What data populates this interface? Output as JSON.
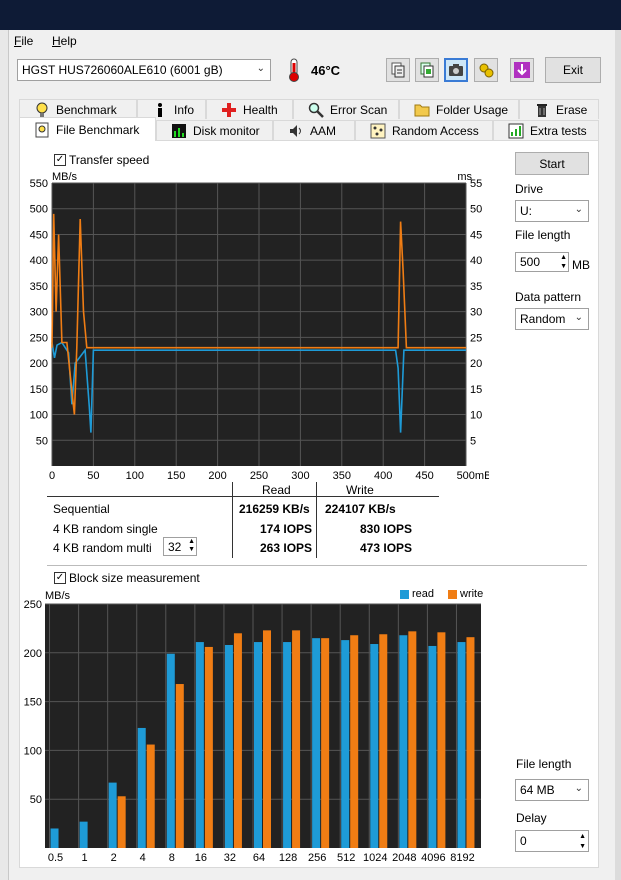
{
  "menu": {
    "file": "File",
    "help": "Help"
  },
  "toolbar": {
    "drive": "HGST HUS726060ALE610 (6001 gB)",
    "temperature": "46°C",
    "exit": "Exit",
    "icons": [
      "copy-icon",
      "copy-text-icon",
      "screenshot-icon",
      "options-icon",
      "save-icon"
    ]
  },
  "tabs_row1": [
    "Benchmark",
    "Info",
    "Health",
    "Error Scan",
    "Folder Usage",
    "Erase"
  ],
  "tabs_row2": [
    "File Benchmark",
    "Disk monitor",
    "AAM",
    "Random Access",
    "Extra tests"
  ],
  "active_tab": "File Benchmark",
  "right": {
    "start": "Start",
    "drive_label": "Drive",
    "drive_value": "U:",
    "file_length_label": "File length",
    "file_length_value": "500",
    "file_length_unit": "MB",
    "data_pattern_label": "Data pattern",
    "data_pattern_value": "Random",
    "file_length2_label": "File length",
    "file_length2_value": "64 MB",
    "delay_label": "Delay",
    "delay_value": "0"
  },
  "transfer": {
    "checkbox_label": "Transfer speed",
    "checked": true,
    "ylabel_left": "MB/s",
    "ylabel_right": "ms",
    "x_unit": "mB"
  },
  "results": {
    "header_read": "Read",
    "header_write": "Write",
    "rows": [
      {
        "label": "Sequential",
        "read": "216259 KB/s",
        "write": "224107 KB/s"
      },
      {
        "label": "4 KB random single",
        "read": "174 IOPS",
        "write": "830 IOPS"
      },
      {
        "label": "4 KB random multi",
        "read": "263 IOPS",
        "write": "473 IOPS"
      }
    ],
    "queue_depth": "32"
  },
  "block": {
    "checkbox_label": "Block size measurement",
    "checked": true,
    "ylabel": "MB/s",
    "legend_read": "read",
    "legend_write": "write"
  },
  "colors": {
    "read": "#1e9bd7",
    "write": "#f07d14",
    "plot_bg": "#222222",
    "grid": "#555555"
  },
  "chart_data": [
    {
      "type": "line",
      "title": "Transfer speed",
      "ylabel": "MB/s",
      "ylabel_right": "ms",
      "xlim": [
        0,
        500
      ],
      "ylim": [
        0,
        550
      ],
      "ylim_right": [
        0,
        55
      ],
      "x_ticks": [
        0,
        50,
        100,
        150,
        200,
        250,
        300,
        350,
        400,
        450,
        500
      ],
      "y_ticks": [
        50,
        100,
        150,
        200,
        250,
        300,
        350,
        400,
        450,
        500,
        550
      ],
      "y_ticks_right": [
        5,
        10,
        15,
        20,
        25,
        30,
        35,
        40,
        45,
        50,
        55
      ],
      "grid": true,
      "series": [
        {
          "name": "read",
          "x": [
            0,
            3,
            6,
            12,
            20,
            24,
            28,
            33,
            40,
            45,
            47,
            50,
            55,
            100,
            200,
            300,
            400,
            415,
            418,
            421,
            425,
            430,
            460,
            500
          ],
          "y": [
            240,
            210,
            235,
            240,
            220,
            120,
            200,
            210,
            225,
            115,
            65,
            225,
            225,
            225,
            225,
            225,
            225,
            225,
            190,
            65,
            225,
            225,
            225,
            225
          ]
        },
        {
          "name": "write",
          "x": [
            0,
            2,
            5,
            8,
            12,
            18,
            24,
            27,
            30,
            34,
            38,
            42,
            48,
            55,
            100,
            200,
            300,
            400,
            418,
            421,
            424,
            428,
            440,
            500
          ],
          "y": [
            230,
            490,
            300,
            450,
            240,
            240,
            145,
            100,
            230,
            480,
            300,
            230,
            230,
            230,
            230,
            230,
            230,
            230,
            230,
            475,
            380,
            230,
            230,
            230
          ]
        }
      ]
    },
    {
      "type": "bar",
      "title": "Block size measurement",
      "ylabel": "MB/s",
      "ylim": [
        0,
        250
      ],
      "y_ticks": [
        50,
        100,
        150,
        200,
        250
      ],
      "grid": true,
      "legend_position": "top-right",
      "categories": [
        "0.5",
        "1",
        "2",
        "4",
        "8",
        "16",
        "32",
        "64",
        "128",
        "256",
        "512",
        "1024",
        "2048",
        "4096",
        "8192"
      ],
      "series": [
        {
          "name": "read",
          "values": [
            20,
            27,
            67,
            123,
            199,
            211,
            208,
            211,
            211,
            215,
            213,
            209,
            218,
            207,
            211
          ]
        },
        {
          "name": "write",
          "values": [
            0,
            0,
            53,
            106,
            168,
            206,
            220,
            223,
            223,
            215,
            218,
            219,
            222,
            221,
            216
          ]
        }
      ]
    }
  ]
}
